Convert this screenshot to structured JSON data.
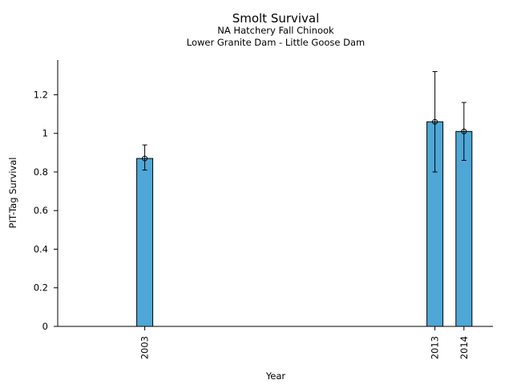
{
  "chart_data": {
    "type": "bar",
    "title": "Smolt Survival",
    "subtitle_lines": [
      "NA Hatchery Fall Chinook",
      "Lower Granite Dam - Little Goose Dam"
    ],
    "xlabel": "Year",
    "ylabel": "PIT-Tag Survival",
    "xlim": [
      2000,
      2015
    ],
    "ylim": [
      0,
      1.38
    ],
    "yticks": [
      0,
      0.2,
      0.4,
      0.6,
      0.8,
      1,
      1.2
    ],
    "ytick_labels": [
      "0",
      "0.2",
      "0.4",
      "0.6",
      "0.8",
      "1",
      "1.2"
    ],
    "grid": false,
    "bar_color": "#4ea7d6",
    "categories": [
      "2003",
      "2013",
      "2014"
    ],
    "x": [
      2003,
      2013,
      2014
    ],
    "values": [
      0.87,
      1.06,
      1.01
    ],
    "error_low": [
      0.81,
      0.8,
      0.86
    ],
    "error_high": [
      0.94,
      1.32,
      1.16
    ]
  }
}
